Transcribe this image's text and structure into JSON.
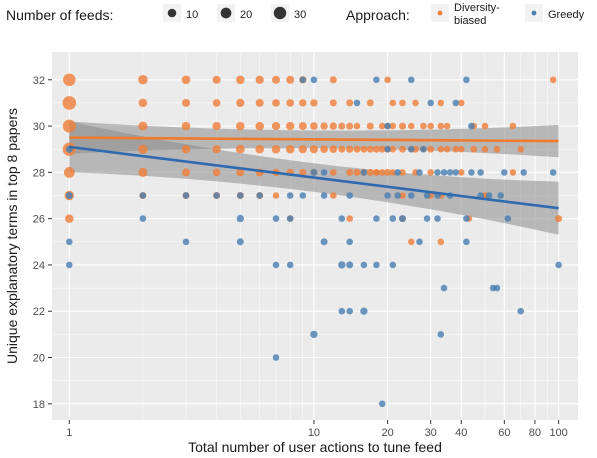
{
  "chart_data": {
    "type": "scatter",
    "xlabel": "Total number of user actions to tune feed",
    "ylabel": "Unique explanatory terms in top 8 papers",
    "x_scale": "log10",
    "xlim": [
      0.85,
      120
    ],
    "ylim": [
      17.3,
      33.2
    ],
    "x_ticks": [
      {
        "value": 1,
        "label": "1"
      },
      {
        "value": 10,
        "label": "10"
      },
      {
        "value": 20,
        "label": "20"
      },
      {
        "value": 30,
        "label": "30"
      },
      {
        "value": 40,
        "label": "40"
      },
      {
        "value": 60,
        "label": "60"
      },
      {
        "value": 80,
        "label": "80"
      },
      {
        "value": 100,
        "label": "100"
      }
    ],
    "y_ticks": [
      18,
      20,
      22,
      24,
      26,
      28,
      30,
      32
    ],
    "grid": true,
    "colors": {
      "panel": "#ebebeb",
      "grid": "#ffffff",
      "diversity": "#ee7f3b",
      "greedy": "#4a7fb2",
      "diversity_line": "#ef7a2f",
      "greedy_line": "#2e6aad",
      "ribbon": "#8c8c8c"
    },
    "legend": {
      "size_title": "Number of feeds:",
      "size_entries": [
        {
          "label": "10",
          "count": 10
        },
        {
          "label": "20",
          "count": 20
        },
        {
          "label": "30",
          "count": 30
        }
      ],
      "color_title": "Approach:",
      "color_entries": [
        {
          "label_lines": [
            "Diversity-",
            "biased"
          ],
          "series": "diversity"
        },
        {
          "label_lines": [
            "Greedy"
          ],
          "series": "greedy"
        }
      ],
      "position": "top"
    },
    "series": [
      {
        "key": "diversity",
        "points": [
          [
            1,
            32,
            30
          ],
          [
            1,
            31,
            38
          ],
          [
            1,
            30,
            34
          ],
          [
            1,
            29,
            36
          ],
          [
            1,
            28,
            20
          ],
          [
            1,
            27,
            14
          ],
          [
            1,
            26,
            10
          ],
          [
            2,
            32,
            14
          ],
          [
            2,
            31,
            10
          ],
          [
            2,
            30,
            12
          ],
          [
            2,
            29,
            14
          ],
          [
            2,
            28,
            12
          ],
          [
            2,
            27,
            5
          ],
          [
            3,
            32,
            10
          ],
          [
            3,
            31,
            8
          ],
          [
            3,
            30,
            10
          ],
          [
            3,
            29,
            10
          ],
          [
            3,
            28,
            8
          ],
          [
            3,
            27,
            5
          ],
          [
            4,
            32,
            8
          ],
          [
            4,
            31,
            7
          ],
          [
            4,
            30,
            9
          ],
          [
            4,
            29,
            9
          ],
          [
            4,
            28,
            7
          ],
          [
            4,
            27,
            5
          ],
          [
            5,
            32,
            10
          ],
          [
            5,
            31,
            9
          ],
          [
            5,
            30,
            10
          ],
          [
            5,
            29,
            11
          ],
          [
            5,
            28,
            8
          ],
          [
            5,
            27,
            5
          ],
          [
            6,
            32,
            9
          ],
          [
            6,
            31,
            8
          ],
          [
            6,
            30,
            10
          ],
          [
            6,
            29,
            10
          ],
          [
            6,
            28,
            8
          ],
          [
            6,
            27,
            5
          ],
          [
            7,
            32,
            8
          ],
          [
            7,
            31,
            7
          ],
          [
            7,
            30,
            9
          ],
          [
            7,
            29,
            10
          ],
          [
            7,
            28,
            6
          ],
          [
            7,
            27,
            4
          ],
          [
            8,
            32,
            8
          ],
          [
            8,
            31,
            7
          ],
          [
            8,
            30,
            9
          ],
          [
            8,
            29,
            10
          ],
          [
            8,
            28,
            6
          ],
          [
            9,
            32,
            6
          ],
          [
            9,
            31,
            6
          ],
          [
            9,
            30,
            8
          ],
          [
            9,
            29,
            9
          ],
          [
            9,
            28,
            5
          ],
          [
            10,
            31,
            6
          ],
          [
            10,
            30,
            7
          ],
          [
            10,
            29,
            9
          ],
          [
            10,
            28,
            5
          ],
          [
            11,
            30,
            6
          ],
          [
            11,
            29,
            7
          ],
          [
            12,
            32,
            5
          ],
          [
            12,
            31,
            5
          ],
          [
            12,
            30,
            6
          ],
          [
            12,
            29,
            7
          ],
          [
            12,
            28,
            4
          ],
          [
            12,
            27,
            4
          ],
          [
            13,
            30,
            5
          ],
          [
            13,
            29,
            5
          ],
          [
            14,
            31,
            5
          ],
          [
            14,
            30,
            5
          ],
          [
            14,
            29,
            6
          ],
          [
            14,
            28,
            5
          ],
          [
            15,
            30,
            4
          ],
          [
            15,
            29,
            5
          ],
          [
            15,
            28,
            5
          ],
          [
            16,
            29,
            5
          ],
          [
            16,
            28,
            5
          ],
          [
            17,
            31,
            5
          ],
          [
            17,
            30,
            5
          ],
          [
            17,
            29,
            5
          ],
          [
            17,
            28,
            5
          ],
          [
            18,
            29,
            5
          ],
          [
            18,
            28,
            4
          ],
          [
            19,
            30,
            4
          ],
          [
            19,
            29,
            5
          ],
          [
            19,
            28,
            4
          ],
          [
            20,
            32,
            4
          ],
          [
            20,
            30,
            4
          ],
          [
            20,
            29,
            5
          ],
          [
            20,
            28,
            5
          ],
          [
            21,
            31,
            4
          ],
          [
            21,
            30,
            4
          ],
          [
            21,
            29,
            4
          ],
          [
            21,
            28,
            4
          ],
          [
            23,
            31,
            4
          ],
          [
            23,
            30,
            5
          ],
          [
            23,
            29,
            5
          ],
          [
            23,
            28,
            4
          ],
          [
            23,
            27,
            4
          ],
          [
            25,
            30,
            4
          ],
          [
            25,
            29,
            4
          ],
          [
            26,
            31,
            4
          ],
          [
            26,
            29,
            5
          ],
          [
            26,
            28,
            4
          ],
          [
            28,
            30,
            4
          ],
          [
            28,
            29,
            4
          ],
          [
            30,
            30,
            4
          ],
          [
            30,
            29,
            5
          ],
          [
            30,
            28,
            4
          ],
          [
            30,
            27,
            4
          ],
          [
            33,
            31,
            4
          ],
          [
            33,
            30,
            4
          ],
          [
            33,
            29,
            4
          ],
          [
            33,
            27,
            4
          ],
          [
            35,
            30,
            4
          ],
          [
            35,
            29,
            4
          ],
          [
            38,
            29,
            4
          ],
          [
            40,
            31,
            4
          ],
          [
            40,
            29,
            4
          ],
          [
            40,
            28,
            4
          ],
          [
            45,
            30,
            4
          ],
          [
            45,
            29,
            4
          ],
          [
            50,
            30,
            4
          ],
          [
            50,
            29,
            4
          ],
          [
            50,
            27,
            4
          ],
          [
            56,
            29,
            4
          ],
          [
            65,
            30,
            4
          ],
          [
            65,
            28,
            4
          ],
          [
            70,
            29,
            4
          ],
          [
            95,
            32,
            4
          ],
          [
            100,
            26,
            5
          ],
          [
            14,
            26,
            4
          ],
          [
            18,
            28,
            4
          ],
          [
            23,
            26,
            4
          ],
          [
            33,
            25,
            4
          ],
          [
            43,
            26,
            4
          ],
          [
            8,
            26,
            4
          ],
          [
            25,
            25,
            4
          ]
        ]
      },
      {
        "key": "greedy",
        "points": [
          [
            1,
            25,
            4
          ],
          [
            1,
            24,
            4
          ],
          [
            1,
            27,
            5
          ],
          [
            1,
            29,
            5
          ],
          [
            2,
            27,
            4
          ],
          [
            2,
            26,
            4
          ],
          [
            3,
            27,
            4
          ],
          [
            3,
            25,
            4
          ],
          [
            4,
            27,
            4
          ],
          [
            5,
            26,
            6
          ],
          [
            5,
            25,
            5
          ],
          [
            5,
            27,
            4
          ],
          [
            6,
            27,
            4
          ],
          [
            7,
            24,
            4
          ],
          [
            7,
            20,
            4
          ],
          [
            7,
            26,
            4
          ],
          [
            8,
            24,
            4
          ],
          [
            8,
            26,
            4
          ],
          [
            8,
            27,
            4
          ],
          [
            9,
            32,
            4
          ],
          [
            9,
            27,
            4
          ],
          [
            10,
            32,
            4
          ],
          [
            10,
            28,
            5
          ],
          [
            10,
            21,
            6
          ],
          [
            11,
            28,
            4
          ],
          [
            11,
            25,
            5
          ],
          [
            11,
            27,
            4
          ],
          [
            13,
            24,
            6
          ],
          [
            13,
            22,
            4
          ],
          [
            13,
            26,
            4
          ],
          [
            14,
            24,
            5
          ],
          [
            14,
            22,
            4
          ],
          [
            14,
            25,
            4
          ],
          [
            14,
            27,
            4
          ],
          [
            16,
            28,
            4
          ],
          [
            16,
            24,
            4
          ],
          [
            16,
            22,
            6
          ],
          [
            18,
            32,
            4
          ],
          [
            18,
            26,
            4
          ],
          [
            18,
            24,
            4
          ],
          [
            19,
            18,
            4
          ],
          [
            20,
            29,
            4
          ],
          [
            20,
            27,
            4
          ],
          [
            21,
            26,
            4
          ],
          [
            21,
            24,
            4
          ],
          [
            22,
            28,
            4
          ],
          [
            22,
            27,
            4
          ],
          [
            23,
            26,
            5
          ],
          [
            25,
            32,
            4
          ],
          [
            25,
            29,
            4
          ],
          [
            25,
            27,
            4
          ],
          [
            27,
            28,
            4
          ],
          [
            27,
            25,
            4
          ],
          [
            29,
            27,
            4
          ],
          [
            29,
            26,
            4
          ],
          [
            32,
            28,
            4
          ],
          [
            32,
            27,
            4
          ],
          [
            32,
            26,
            4
          ],
          [
            33,
            21,
            4
          ],
          [
            34,
            23,
            4
          ],
          [
            34,
            28,
            4
          ],
          [
            36,
            28,
            4
          ],
          [
            36,
            27,
            4
          ],
          [
            38,
            31,
            4
          ],
          [
            38,
            28,
            4
          ],
          [
            42,
            32,
            4
          ],
          [
            42,
            26,
            4
          ],
          [
            42,
            25,
            4
          ],
          [
            44,
            30,
            4
          ],
          [
            44,
            28,
            4
          ],
          [
            48,
            28,
            4
          ],
          [
            48,
            27,
            4
          ],
          [
            52,
            27,
            4
          ],
          [
            54,
            23,
            4
          ],
          [
            56,
            23,
            4
          ],
          [
            58,
            27,
            4
          ],
          [
            60,
            28,
            4
          ],
          [
            62,
            26,
            4
          ],
          [
            70,
            22,
            4
          ],
          [
            72,
            28,
            4
          ],
          [
            95,
            28,
            4
          ],
          [
            100,
            24,
            4
          ],
          [
            20,
            30,
            4
          ],
          [
            28,
            29,
            4
          ],
          [
            30,
            31,
            4
          ],
          [
            15,
            31,
            4
          ]
        ]
      }
    ],
    "trend_lines": [
      {
        "series": "diversity",
        "x": [
          1,
          100
        ],
        "y": [
          29.5,
          29.35
        ],
        "ci_low": [
          28.8,
          28.65
        ],
        "ci_high": [
          30.2,
          30.05
        ]
      },
      {
        "series": "greedy",
        "x": [
          1,
          100
        ],
        "y": [
          29.1,
          26.45
        ],
        "ci_low": [
          28.0,
          25.3
        ],
        "ci_high": [
          30.2,
          27.6
        ]
      }
    ]
  }
}
